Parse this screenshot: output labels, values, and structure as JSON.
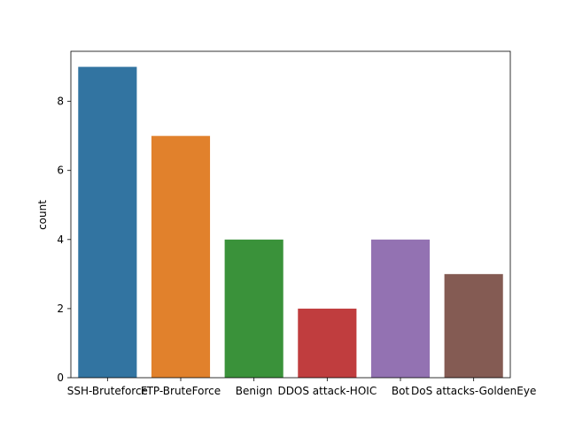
{
  "chart_data": {
    "type": "bar",
    "title": "",
    "xlabel": "",
    "ylabel": "count",
    "categories": [
      "SSH-Bruteforce",
      "FTP-BruteForce",
      "Benign",
      "DDOS attack-HOIC",
      "Bot",
      "DoS attacks-GoldenEye"
    ],
    "values": [
      9,
      7,
      4,
      2,
      4,
      3
    ],
    "colors": [
      "#3274a1",
      "#e1812c",
      "#3a923a",
      "#c03d3e",
      "#9372b2",
      "#845b53"
    ],
    "ylim": [
      0,
      9.45
    ],
    "yticks": [
      0,
      2,
      4,
      6,
      8
    ],
    "grid": false,
    "legend": "none"
  }
}
